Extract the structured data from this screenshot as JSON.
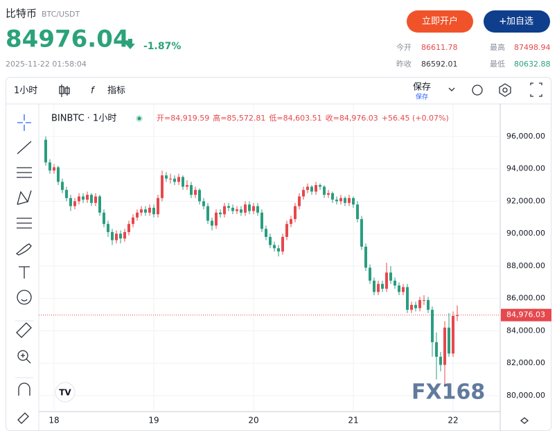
{
  "header": {
    "title": "比特币",
    "symbol": "BTC/USDT",
    "price": "84976.04",
    "change": "-1.87%",
    "time": "2025-11-22 01:58:04",
    "buttons": [
      "立即开户",
      "加自选"
    ],
    "stats": [
      {
        "label": "今开",
        "value": "86611.78"
      },
      {
        "label": "最高",
        "value": "87498.94"
      },
      {
        "label": "昨收",
        "value": "86592.01"
      },
      {
        "label": "最低",
        "value": "80632.88"
      }
    ]
  },
  "toolbar": {
    "interval": "1小时",
    "indicators": "指标",
    "save": "保存",
    "save_sub": "保存"
  },
  "legend": {
    "symbol": "BINBTC · 1小时",
    "items": [
      "开=84,919.59",
      "高=85,572.81",
      "低=84,603.51",
      "收=84,976.03",
      "+56.45 (+0.07%)"
    ]
  },
  "watermark": "FX168",
  "chart_data": {
    "type": "candlestick",
    "up_color": "#e5484d",
    "down_color": "#2a9d7f",
    "ylim": [
      79100,
      97925
    ],
    "yticks": [
      {
        "value": 80000,
        "label": "80,000.00"
      },
      {
        "value": 82000,
        "label": "82,000.00"
      },
      {
        "value": 84000,
        "label": "84,000.00"
      },
      {
        "value": 86000,
        "label": "86,000.00"
      },
      {
        "value": 88000,
        "label": "88,000.00"
      },
      {
        "value": 90000,
        "label": "90,000.00"
      },
      {
        "value": 92000,
        "label": "92,000.00"
      },
      {
        "value": 94000,
        "label": "94,000.00"
      },
      {
        "value": 96000,
        "label": "96,000.00"
      }
    ],
    "last_price": {
      "value": 84976.03,
      "label": "84,976.03"
    },
    "categories": [
      null,
      null,
      "18",
      null,
      null,
      null,
      null,
      null,
      null,
      null,
      null,
      null,
      null,
      null,
      null,
      null,
      null,
      null,
      null,
      null,
      null,
      null,
      null,
      null,
      null,
      null,
      "19",
      null,
      null,
      null,
      null,
      null,
      null,
      null,
      null,
      null,
      null,
      null,
      null,
      null,
      null,
      null,
      null,
      null,
      null,
      null,
      null,
      null,
      null,
      null,
      "20",
      null,
      null,
      null,
      null,
      null,
      null,
      null,
      null,
      null,
      null,
      null,
      null,
      null,
      null,
      null,
      null,
      null,
      null,
      null,
      null,
      null,
      null,
      null,
      "21",
      null,
      null,
      null,
      null,
      null,
      null,
      null,
      null,
      null,
      null,
      null,
      null,
      null,
      null,
      null,
      null,
      null,
      null,
      null,
      null,
      null,
      null,
      null,
      "22",
      null
    ],
    "candles": [
      [
        95800,
        96000,
        94200,
        94400
      ],
      [
        94400,
        94600,
        93700,
        93900
      ],
      [
        93900,
        94300,
        93700,
        94100
      ],
      [
        94100,
        94200,
        93000,
        93200
      ],
      [
        93200,
        93400,
        92500,
        92700
      ],
      [
        92700,
        92900,
        92000,
        92200
      ],
      [
        92200,
        92400,
        91400,
        91700
      ],
      [
        91700,
        92200,
        91500,
        92000
      ],
      [
        92000,
        92500,
        91800,
        92300
      ],
      [
        92300,
        92500,
        91900,
        92100
      ],
      [
        92100,
        92600,
        91900,
        92400
      ],
      [
        92400,
        92500,
        91700,
        91900
      ],
      [
        91900,
        92500,
        91700,
        92300
      ],
      [
        92300,
        92400,
        91100,
        91300
      ],
      [
        91300,
        91500,
        90400,
        90600
      ],
      [
        90600,
        90800,
        89800,
        90100
      ],
      [
        90100,
        90300,
        89300,
        89600
      ],
      [
        89600,
        90200,
        89400,
        90000
      ],
      [
        90000,
        90200,
        89400,
        89700
      ],
      [
        89700,
        90300,
        89500,
        90100
      ],
      [
        90100,
        90800,
        89900,
        90600
      ],
      [
        90600,
        91200,
        90400,
        91000
      ],
      [
        91000,
        91500,
        90800,
        91300
      ],
      [
        91300,
        91700,
        91100,
        91500
      ],
      [
        91500,
        91700,
        91100,
        91300
      ],
      [
        91300,
        91800,
        91100,
        91600
      ],
      [
        91600,
        91800,
        91000,
        91200
      ],
      [
        91200,
        92400,
        91000,
        92200
      ],
      [
        92200,
        93900,
        92000,
        93600
      ],
      [
        93600,
        93800,
        93200,
        93400
      ],
      [
        93400,
        93700,
        93100,
        93400
      ],
      [
        93400,
        93600,
        93000,
        93200
      ],
      [
        93200,
        93700,
        93000,
        93500
      ],
      [
        93500,
        93600,
        92700,
        92900
      ],
      [
        92900,
        93300,
        92700,
        93000
      ],
      [
        93000,
        93200,
        92200,
        92400
      ],
      [
        92400,
        92900,
        92200,
        92700
      ],
      [
        92700,
        92800,
        91800,
        92000
      ],
      [
        92000,
        92200,
        91500,
        91700
      ],
      [
        91700,
        91900,
        90600,
        90800
      ],
      [
        90800,
        91000,
        90200,
        90500
      ],
      [
        90500,
        91500,
        90300,
        91300
      ],
      [
        91300,
        91500,
        91000,
        91200
      ],
      [
        91200,
        91900,
        91000,
        91700
      ],
      [
        91700,
        91900,
        91400,
        91600
      ],
      [
        91600,
        91800,
        91200,
        91400
      ],
      [
        91400,
        91700,
        91200,
        91500
      ],
      [
        91500,
        91700,
        91100,
        91300
      ],
      [
        91300,
        92000,
        91100,
        91800
      ],
      [
        91800,
        92000,
        91200,
        91400
      ],
      [
        91400,
        91900,
        91200,
        91700
      ],
      [
        91700,
        91900,
        91100,
        91300
      ],
      [
        91300,
        91500,
        90100,
        90300
      ],
      [
        90300,
        90500,
        89600,
        89800
      ],
      [
        89800,
        90000,
        89100,
        89300
      ],
      [
        89300,
        89500,
        88900,
        89100
      ],
      [
        89100,
        89300,
        88600,
        88900
      ],
      [
        88900,
        90000,
        88700,
        89800
      ],
      [
        89800,
        90800,
        89600,
        90600
      ],
      [
        90600,
        91100,
        90400,
        90900
      ],
      [
        90900,
        91900,
        90700,
        91700
      ],
      [
        91700,
        92500,
        91500,
        92300
      ],
      [
        92300,
        92900,
        92100,
        92700
      ],
      [
        92700,
        93100,
        92500,
        92900
      ],
      [
        92900,
        93000,
        92400,
        92600
      ],
      [
        92600,
        93200,
        92400,
        93000
      ],
      [
        93000,
        93100,
        92700,
        92900
      ],
      [
        92900,
        93000,
        92200,
        92400
      ],
      [
        92400,
        92700,
        92200,
        92500
      ],
      [
        92500,
        92600,
        91900,
        92100
      ],
      [
        92100,
        92300,
        91800,
        92000
      ],
      [
        92000,
        92400,
        91800,
        92200
      ],
      [
        92200,
        92300,
        91700,
        91900
      ],
      [
        91900,
        92400,
        91700,
        92200
      ],
      [
        92200,
        92300,
        91600,
        91800
      ],
      [
        91800,
        92000,
        90700,
        90900
      ],
      [
        90900,
        91100,
        89000,
        89200
      ],
      [
        89200,
        89400,
        87700,
        87900
      ],
      [
        87900,
        88100,
        86900,
        87100
      ],
      [
        87100,
        87300,
        86200,
        86400
      ],
      [
        86400,
        87100,
        86200,
        86900
      ],
      [
        86900,
        87100,
        86400,
        86600
      ],
      [
        86600,
        88200,
        86400,
        87600
      ],
      [
        87600,
        88000,
        86900,
        87100
      ],
      [
        87100,
        87300,
        86600,
        86800
      ],
      [
        86800,
        87000,
        86200,
        86400
      ],
      [
        86400,
        86900,
        86200,
        86700
      ],
      [
        86700,
        86900,
        85100,
        85300
      ],
      [
        85300,
        85800,
        85100,
        85600
      ],
      [
        85600,
        85800,
        85200,
        85400
      ],
      [
        85400,
        86100,
        85200,
        85900
      ],
      [
        85900,
        86200,
        85600,
        85900
      ],
      [
        85900,
        86100,
        85100,
        85300
      ],
      [
        85300,
        85500,
        82400,
        83300
      ],
      [
        83300,
        83900,
        81000,
        82400
      ],
      [
        82400,
        82700,
        81500,
        81900
      ],
      [
        81900,
        84600,
        80600,
        84200
      ],
      [
        84200,
        85100,
        82400,
        82600
      ],
      [
        82600,
        85200,
        82400,
        84919.59
      ],
      [
        84919.59,
        85572.81,
        84603.51,
        84976.03
      ]
    ]
  }
}
